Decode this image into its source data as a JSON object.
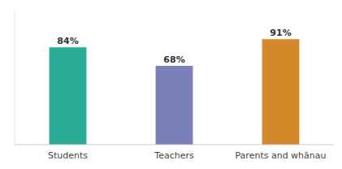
{
  "chart_data": {
    "type": "bar",
    "categories": [
      "Students",
      "Teachers",
      "Parents and whānau"
    ],
    "values": [
      84,
      68,
      91
    ],
    "value_labels": [
      "84%",
      "68%",
      "91%"
    ],
    "colors": [
      "#2aab96",
      "#7b7fba",
      "#d4882a"
    ],
    "ylim": [
      0,
      115
    ],
    "data_labels": true,
    "tick_labels": "x",
    "grid": false
  }
}
